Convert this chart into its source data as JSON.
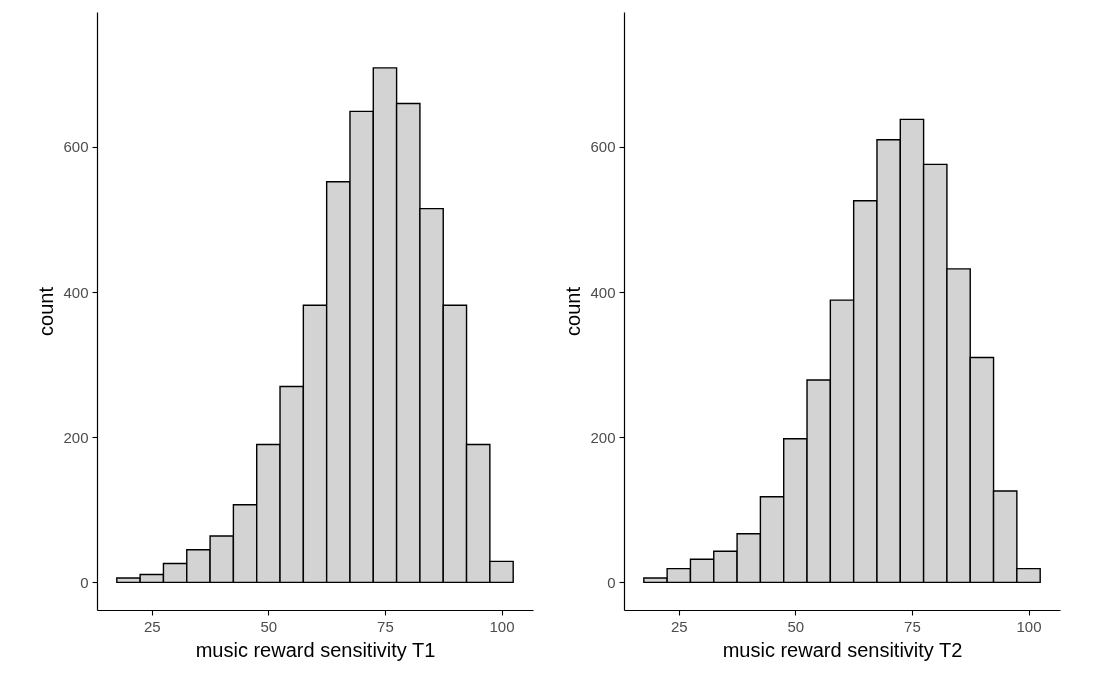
{
  "chart_data": [
    {
      "type": "histogram",
      "xlabel": "music reward sensitivity T1",
      "ylabel": "count",
      "color": "#d3d3d3",
      "bins": [
        17.5,
        22.5,
        27.5,
        32.5,
        37.5,
        42.5,
        47.5,
        52.5,
        57.5,
        62.5,
        67.5,
        72.5,
        77.5,
        82.5,
        87.5,
        92.5,
        97.5,
        102.5
      ],
      "values": [
        6,
        11,
        26,
        45,
        64,
        107,
        190,
        270,
        382,
        552,
        649,
        709,
        660,
        515,
        382,
        190,
        29
      ],
      "xlim": [
        13.25,
        106.75
      ],
      "xticks": [
        25,
        50,
        75,
        100
      ],
      "ylim": [
        -38,
        786
      ],
      "yticks": [
        0,
        200,
        400,
        600
      ]
    },
    {
      "type": "histogram",
      "xlabel": "music reward sensitivity T2",
      "ylabel": "count",
      "color": "#d3d3d3",
      "bins": [
        17.5,
        22.5,
        27.5,
        32.5,
        37.5,
        42.5,
        47.5,
        52.5,
        57.5,
        62.5,
        67.5,
        72.5,
        77.5,
        82.5,
        87.5,
        92.5,
        97.5,
        102.5
      ],
      "values": [
        6,
        19,
        32,
        43,
        67,
        118,
        198,
        279,
        389,
        526,
        610,
        638,
        576,
        432,
        310,
        126,
        19
      ],
      "xlim": [
        13.25,
        106.75
      ],
      "xticks": [
        25,
        50,
        75,
        100
      ],
      "ylim": [
        -38,
        786
      ],
      "yticks": [
        0,
        200,
        400,
        600
      ]
    }
  ]
}
